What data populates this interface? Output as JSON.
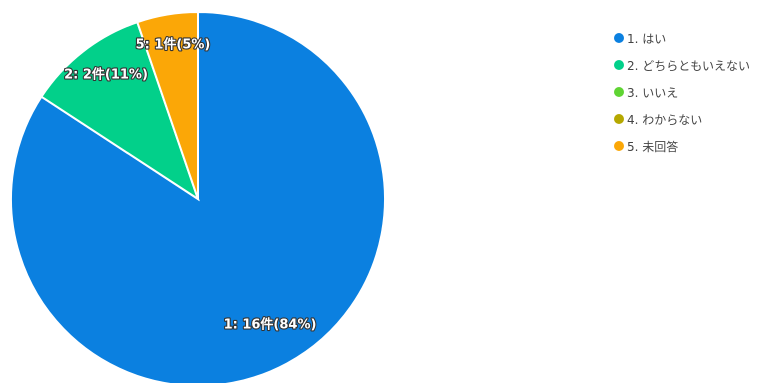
{
  "chart_data": {
    "type": "pie",
    "categories": [
      "1. はい",
      "2. どちらともいえない",
      "3. いいえ",
      "4. わからない",
      "5. 未回答"
    ],
    "values": [
      16,
      2,
      0,
      0,
      1
    ],
    "data_labels": [
      "1: 16件(84%)",
      "2: 2件(11%)",
      "",
      "",
      "5: 1件(5%)"
    ],
    "colors": [
      "#0b80e0",
      "#02d08a",
      "#5fd433",
      "#b5a800",
      "#fba707"
    ],
    "legend_position": "right",
    "start_angle": "top",
    "direction": "clockwise"
  }
}
